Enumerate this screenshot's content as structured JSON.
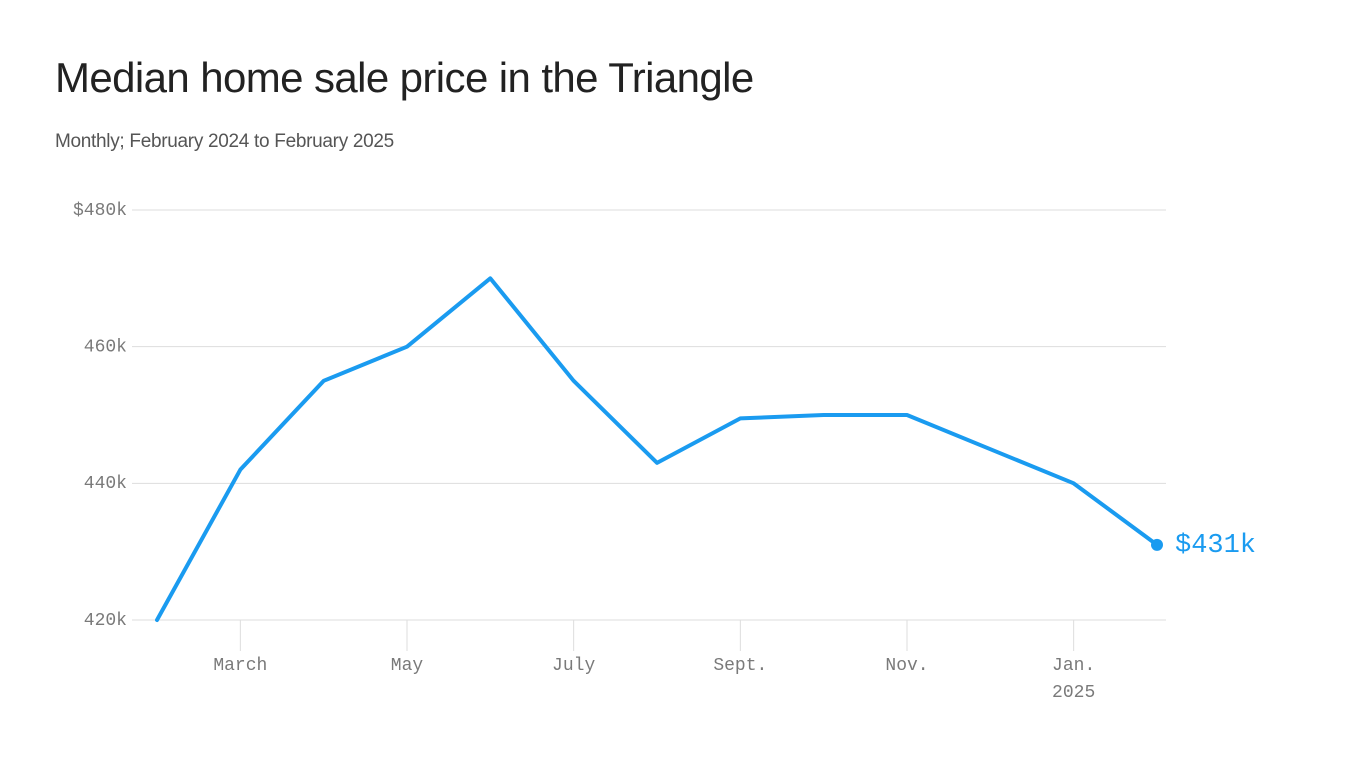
{
  "title": "Median home sale price in the Triangle",
  "subtitle": "Monthly; February 2024 to February 2025",
  "colors": {
    "line": "#1a9bf0",
    "grid": "#dddddd",
    "axis_text": "#7a7a7a",
    "title_text": "#222222",
    "subtitle_text": "#555555"
  },
  "chart_data": {
    "type": "line",
    "title": "Median home sale price in the Triangle",
    "subtitle": "Monthly; February 2024 to February 2025",
    "xlabel": "",
    "ylabel": "",
    "ylim": [
      420,
      480
    ],
    "y_unit": "thousands of dollars",
    "yticks": [
      {
        "value": 480,
        "label": "$480k"
      },
      {
        "value": 460,
        "label": "460k"
      },
      {
        "value": 440,
        "label": "440k"
      },
      {
        "value": 420,
        "label": "420k"
      }
    ],
    "x": [
      "Feb 2024",
      "Mar 2024",
      "Apr 2024",
      "May 2024",
      "Jun 2024",
      "Jul 2024",
      "Aug 2024",
      "Sep 2024",
      "Oct 2024",
      "Nov 2024",
      "Dec 2024",
      "Jan 2025",
      "Feb 2025"
    ],
    "xticks": [
      {
        "index": 1,
        "label": "March"
      },
      {
        "index": 3,
        "label": "May"
      },
      {
        "index": 5,
        "label": "July"
      },
      {
        "index": 7,
        "label": "Sept."
      },
      {
        "index": 9,
        "label": "Nov."
      },
      {
        "index": 11,
        "label": "Jan.",
        "sublabel": "2025"
      }
    ],
    "grid": true,
    "series": [
      {
        "name": "Median home sale price",
        "values": [
          420,
          442,
          455,
          460,
          470,
          455,
          443,
          449.5,
          450,
          450,
          445,
          440,
          431
        ]
      }
    ],
    "end_label": "$431k"
  }
}
